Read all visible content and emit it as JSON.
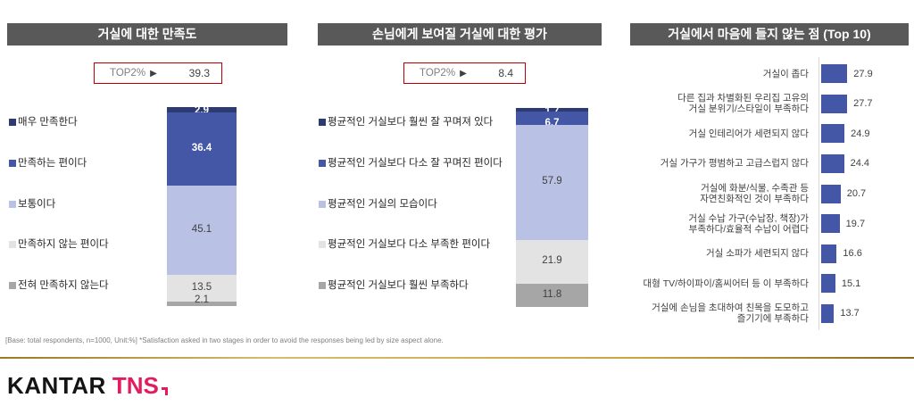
{
  "page": {
    "footer_note": "[Base: total respondents, n=1000, Unit:%] *Satisfaction asked in two stages  in order to avoid the responses being led by size aspect alone.",
    "logo": {
      "kantar": "KANTAR",
      "tns": "TNS"
    },
    "colors": {
      "title_bar_bg": "#595959",
      "top2_border": "#C00000",
      "gold_divider": "#C2A14D",
      "logo_pink": "#E31C5F"
    }
  },
  "chart_data": [
    {
      "type": "bar",
      "subtype": "stacked-vertical-100pct",
      "title": "거실에 대한 만족도",
      "unit": "%",
      "top2": {
        "label": "TOP2%",
        "arrow": "▶",
        "value": 39.3
      },
      "categories": [
        "매우 만족한다",
        "만족하는 편이다",
        "보통이다",
        "만족하지 않는 편이다",
        "전혀 만족하지 않는다"
      ],
      "values": [
        2.9,
        36.4,
        45.1,
        13.5,
        2.1
      ],
      "colors": [
        "#2E3B73",
        "#4457A7",
        "#B9C1E4",
        "#E3E3E3",
        "#A6A6A6"
      ],
      "legend_position": "left"
    },
    {
      "type": "bar",
      "subtype": "stacked-vertical-100pct",
      "title": "손님에게 보여질 거실에 대한 평가",
      "unit": "%",
      "top2": {
        "label": "TOP2%",
        "arrow": "▶",
        "value": 8.4
      },
      "categories": [
        "평균적인 거실보다 훨씬 잘 꾸며져 있다",
        "평균적인 거실보다 다소 잘 꾸며진 편이다",
        "평균적인 거실의 모습이다",
        "평균적인 거실보다 다소 부족한 편이다",
        "평균적인 거실보다 훨씬 부족하다"
      ],
      "values": [
        1.7,
        6.7,
        57.9,
        21.9,
        11.8
      ],
      "colors": [
        "#2E3B73",
        "#4457A7",
        "#B9C1E4",
        "#E3E3E3",
        "#A6A6A6"
      ],
      "legend_position": "left"
    },
    {
      "type": "bar",
      "subtype": "horizontal",
      "title": "거실에서 마음에 들지 않는 점 (Top 10)",
      "unit": "%",
      "categories": [
        "거실이 좁다",
        "다른 집과 차별화된 우리집 고유의\n거실 분위기/스타일이 부족하다",
        "거실 인테리어가 세련되지 않다",
        "거실 가구가 평범하고 고급스럽지 않다",
        "거실에 화분/식물, 수족관 등\n자연친화적인 것이 부족하다",
        "거실 수납 가구(수납장, 책장)가\n부족하다/효율적 수납이 어렵다",
        "거실 소파가 세련되지 않다",
        "대형 TV/하이파이/홈씨어터 등 이 부족하다",
        "거실에 손님을 초대하여 친목을 도모하고\n즐기기에 부족하다"
      ],
      "values": [
        27.9,
        27.7,
        24.9,
        24.4,
        20.7,
        19.7,
        16.6,
        15.1,
        13.7
      ],
      "bar_color": "#4456A6",
      "xlim": [
        0,
        30
      ]
    }
  ]
}
